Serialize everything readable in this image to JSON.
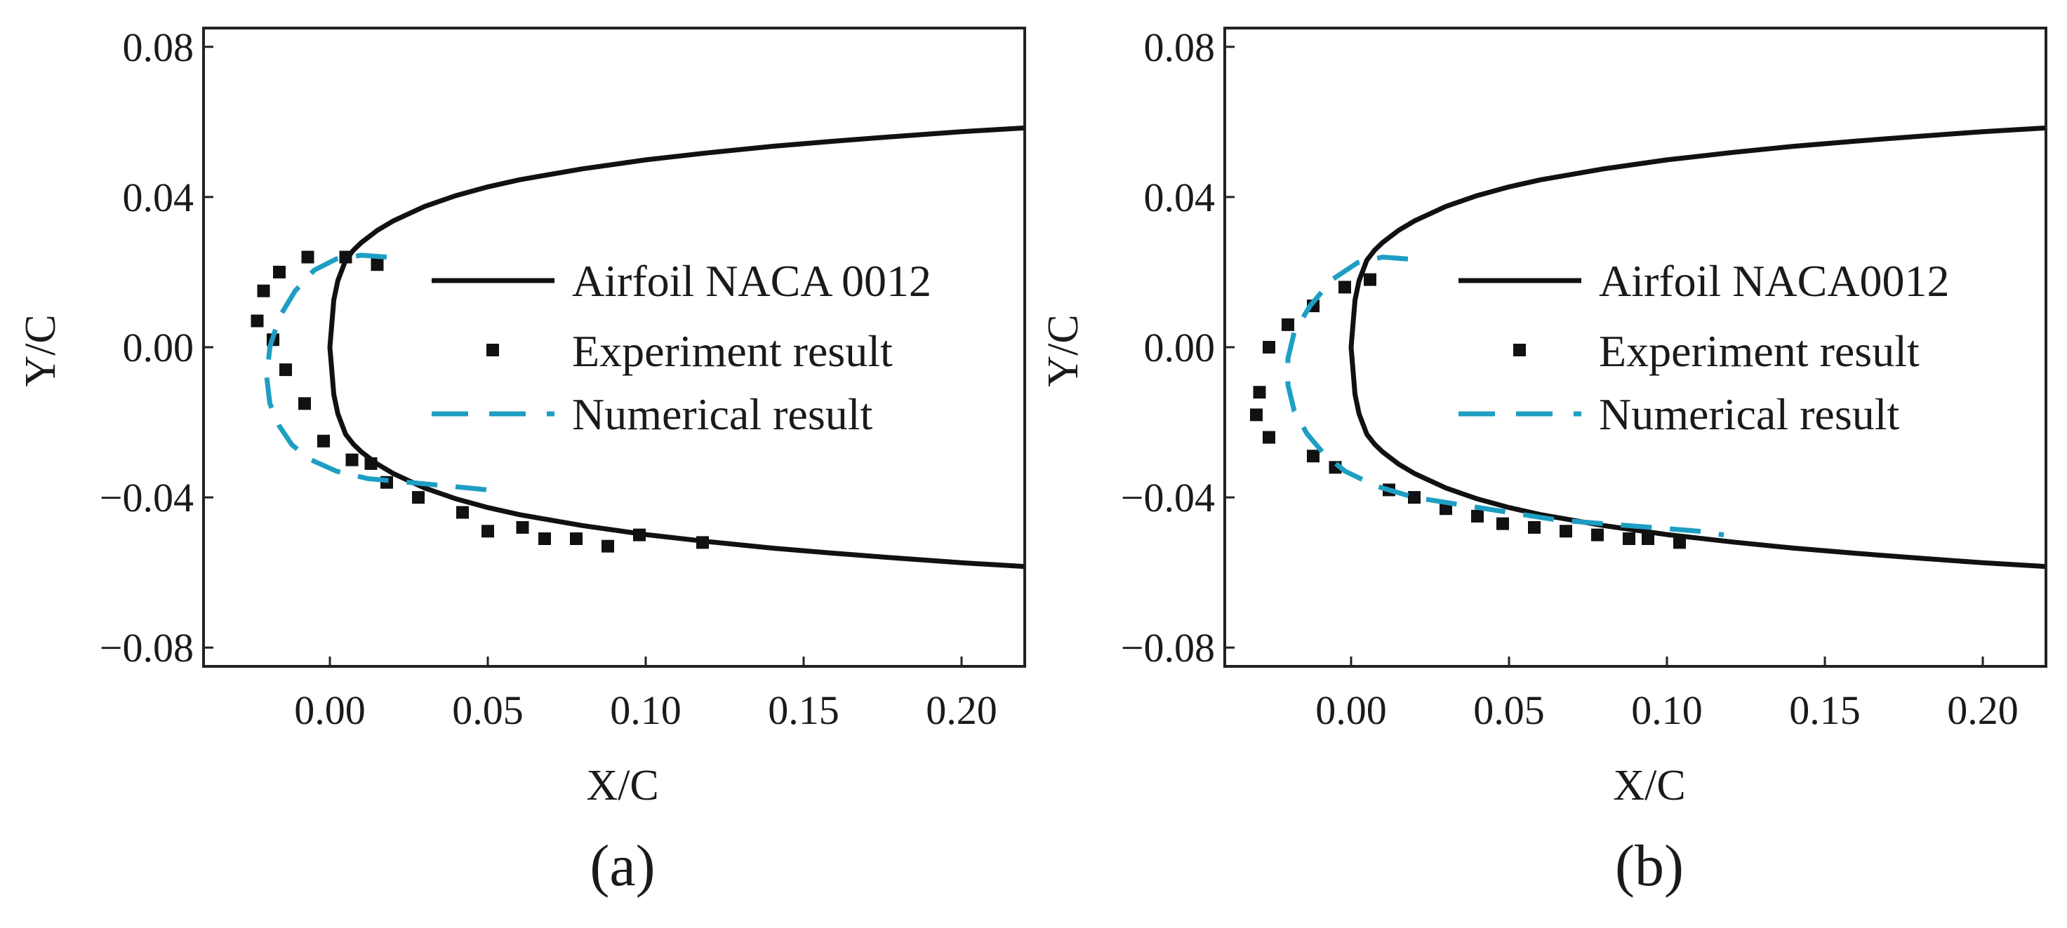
{
  "colors": {
    "airfoil": "#111111",
    "experiment": "#111111",
    "numerical": "#1f9ec3",
    "frame": "#222222"
  },
  "chart_data": [
    {
      "type": "scatter",
      "panel": "(a)",
      "xlabel": "X/C",
      "ylabel": "Y/C",
      "xlim": [
        -0.04,
        0.22
      ],
      "ylim": [
        -0.085,
        0.085
      ],
      "xticks": [
        0.0,
        0.05,
        0.1,
        0.15,
        0.2
      ],
      "xtick_labels": [
        "0.00",
        "0.05",
        "0.10",
        "0.15",
        "0.20"
      ],
      "yticks": [
        0.08,
        0.04,
        0.0,
        -0.04,
        -0.08
      ],
      "ytick_labels": [
        "0.08",
        "0.04",
        "0.00",
        "−0.04",
        "−0.08"
      ],
      "legend_position": "center-right",
      "series": [
        {
          "name": "Airfoil NACA 0012",
          "kind": "line",
          "style": "solid",
          "color": "#111111",
          "x": [
            0.22,
            0.2,
            0.18,
            0.16,
            0.14,
            0.12,
            0.1,
            0.08,
            0.06,
            0.05,
            0.04,
            0.03,
            0.02,
            0.015,
            0.01,
            0.0075,
            0.005,
            0.0025,
            0.00125,
            0.0,
            0.00125,
            0.0025,
            0.005,
            0.0075,
            0.01,
            0.015,
            0.02,
            0.03,
            0.04,
            0.05,
            0.06,
            0.08,
            0.1,
            0.12,
            0.14,
            0.16,
            0.18,
            0.2,
            0.22
          ],
          "y": [
            0.0584,
            0.0574,
            0.0562,
            0.0549,
            0.0535,
            0.0518,
            0.0499,
            0.0475,
            0.0446,
            0.0427,
            0.0404,
            0.0375,
            0.0336,
            0.0311,
            0.0279,
            0.0259,
            0.0232,
            0.0177,
            0.0126,
            0.0,
            -0.0126,
            -0.0177,
            -0.0232,
            -0.0259,
            -0.0279,
            -0.0311,
            -0.0336,
            -0.0375,
            -0.0404,
            -0.0427,
            -0.0446,
            -0.0475,
            -0.0499,
            -0.0518,
            -0.0535,
            -0.0549,
            -0.0562,
            -0.0574,
            -0.0584
          ]
        },
        {
          "name": "Experiment result",
          "kind": "scatter",
          "marker": "square",
          "color": "#111111",
          "x": [
            0.015,
            0.005,
            -0.007,
            -0.016,
            -0.021,
            -0.023,
            -0.018,
            -0.014,
            -0.008,
            -0.002,
            0.007,
            0.013,
            0.018,
            0.028,
            0.042,
            0.05,
            0.061,
            0.068,
            0.078,
            0.088,
            0.098,
            0.118
          ],
          "y": [
            0.022,
            0.024,
            0.024,
            0.02,
            0.015,
            0.007,
            0.002,
            -0.006,
            -0.015,
            -0.025,
            -0.03,
            -0.031,
            -0.036,
            -0.04,
            -0.044,
            -0.049,
            -0.048,
            -0.051,
            -0.051,
            -0.053,
            -0.05,
            -0.052
          ]
        },
        {
          "name": "Numerical result",
          "kind": "line",
          "style": "dashed",
          "color": "#1f9ec3",
          "x": [
            0.018,
            0.01,
            0.002,
            -0.005,
            -0.011,
            -0.016,
            -0.019,
            -0.02,
            -0.019,
            -0.016,
            -0.012,
            -0.006,
            0.002,
            0.012,
            0.025,
            0.038,
            0.05
          ],
          "y": [
            0.024,
            0.0245,
            0.0235,
            0.0205,
            0.015,
            0.008,
            0.0,
            -0.008,
            -0.015,
            -0.021,
            -0.026,
            -0.03,
            -0.033,
            -0.035,
            -0.036,
            -0.037,
            -0.038
          ]
        }
      ]
    },
    {
      "type": "scatter",
      "panel": "(b)",
      "xlabel": "X/C",
      "ylabel": "Y/C",
      "xlim": [
        -0.04,
        0.22
      ],
      "ylim": [
        -0.085,
        0.085
      ],
      "xticks": [
        0.0,
        0.05,
        0.1,
        0.15,
        0.2
      ],
      "xtick_labels": [
        "0.00",
        "0.05",
        "0.10",
        "0.15",
        "0.20"
      ],
      "yticks": [
        0.08,
        0.04,
        0.0,
        -0.04,
        -0.08
      ],
      "ytick_labels": [
        "0.08",
        "0.04",
        "0.00",
        "−0.04",
        "−0.08"
      ],
      "legend_position": "center-right",
      "series": [
        {
          "name": "Airfoil NACA0012",
          "kind": "line",
          "style": "solid",
          "color": "#111111",
          "x": [
            0.22,
            0.2,
            0.18,
            0.16,
            0.14,
            0.12,
            0.1,
            0.08,
            0.06,
            0.05,
            0.04,
            0.03,
            0.02,
            0.015,
            0.01,
            0.0075,
            0.005,
            0.0025,
            0.00125,
            0.0,
            0.00125,
            0.0025,
            0.005,
            0.0075,
            0.01,
            0.015,
            0.02,
            0.03,
            0.04,
            0.05,
            0.06,
            0.08,
            0.1,
            0.12,
            0.14,
            0.16,
            0.18,
            0.2,
            0.22
          ],
          "y": [
            0.0584,
            0.0574,
            0.0562,
            0.0549,
            0.0535,
            0.0518,
            0.0499,
            0.0475,
            0.0446,
            0.0427,
            0.0404,
            0.0375,
            0.0336,
            0.0311,
            0.0279,
            0.0259,
            0.0232,
            0.0177,
            0.0126,
            0.0,
            -0.0126,
            -0.0177,
            -0.0232,
            -0.0259,
            -0.0279,
            -0.0311,
            -0.0336,
            -0.0375,
            -0.0404,
            -0.0427,
            -0.0446,
            -0.0475,
            -0.0499,
            -0.0518,
            -0.0535,
            -0.0549,
            -0.0562,
            -0.0574,
            -0.0584
          ]
        },
        {
          "name": "Experiment result",
          "kind": "scatter",
          "marker": "square",
          "color": "#111111",
          "x": [
            0.006,
            -0.002,
            -0.012,
            -0.02,
            -0.026,
            -0.029,
            -0.03,
            -0.026,
            -0.012,
            -0.005,
            0.012,
            0.02,
            0.03,
            0.04,
            0.048,
            0.058,
            0.068,
            0.078,
            0.088,
            0.094,
            0.104
          ],
          "y": [
            0.018,
            0.016,
            0.011,
            0.006,
            0.0,
            -0.012,
            -0.018,
            -0.024,
            -0.029,
            -0.032,
            -0.038,
            -0.04,
            -0.043,
            -0.045,
            -0.047,
            -0.048,
            -0.049,
            -0.05,
            -0.051,
            -0.051,
            -0.052
          ]
        },
        {
          "name": "Numerical result",
          "kind": "line",
          "style": "dashed",
          "color": "#1f9ec3",
          "x": [
            0.018,
            0.01,
            0.002,
            -0.006,
            -0.013,
            -0.018,
            -0.02,
            -0.02,
            -0.018,
            -0.014,
            -0.009,
            -0.002,
            0.008,
            0.02,
            0.035,
            0.05,
            0.065,
            0.08,
            0.095,
            0.11,
            0.118
          ],
          "y": [
            0.0235,
            0.024,
            0.0225,
            0.018,
            0.011,
            0.004,
            -0.003,
            -0.01,
            -0.017,
            -0.023,
            -0.028,
            -0.033,
            -0.037,
            -0.04,
            -0.042,
            -0.044,
            -0.046,
            -0.047,
            -0.048,
            -0.049,
            -0.05
          ]
        }
      ]
    }
  ]
}
